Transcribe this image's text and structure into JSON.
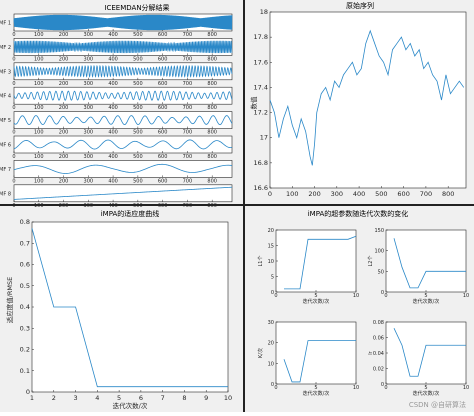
{
  "colors": {
    "line": "#2a88c8",
    "axis": "#262626",
    "background": "#f0f0f0",
    "plot_bg": "#ffffff",
    "divider": "#222222"
  },
  "watermark": "CSDN @自研算法",
  "chart_data": [
    {
      "id": "iceemdan",
      "type": "line",
      "title": "ICEEMDAN分解结果",
      "xlim": [
        0,
        880
      ],
      "xticks": [
        0,
        100,
        200,
        300,
        400,
        500,
        600,
        700,
        800
      ],
      "series": [
        {
          "name": "IMF 1",
          "amplitude": 1.0,
          "period": 3
        },
        {
          "name": "IMF 2",
          "amplitude": 0.8,
          "period": 6
        },
        {
          "name": "IMF 3",
          "amplitude": 0.7,
          "period": 12
        },
        {
          "name": "IMF 4",
          "amplitude": 0.6,
          "period": 25
        },
        {
          "name": "IMF 5",
          "amplitude": 0.6,
          "period": 55
        },
        {
          "name": "IMF 6",
          "amplitude": 0.6,
          "period": 110
        },
        {
          "name": "IMF 7",
          "amplitude": 0.6,
          "period": 260
        },
        {
          "name": "IMF 8",
          "amplitude": 0.6,
          "period": 1400
        }
      ]
    },
    {
      "id": "original",
      "type": "line",
      "title": "原始序列",
      "ylabel": "数值",
      "xlim": [
        0,
        880
      ],
      "ylim": [
        16.6,
        18.0
      ],
      "xticks": [
        0,
        100,
        200,
        300,
        400,
        500,
        600,
        700,
        800
      ],
      "yticks": [
        16.6,
        16.8,
        17.0,
        17.2,
        17.4,
        17.6,
        17.8,
        18.0
      ],
      "x": [
        0,
        20,
        40,
        60,
        80,
        100,
        120,
        140,
        160,
        180,
        190,
        200,
        210,
        230,
        250,
        270,
        290,
        310,
        330,
        350,
        370,
        390,
        410,
        430,
        450,
        470,
        490,
        510,
        530,
        550,
        570,
        590,
        610,
        630,
        650,
        670,
        690,
        710,
        730,
        750,
        770,
        790,
        810,
        830,
        850,
        870
      ],
      "y": [
        17.3,
        17.2,
        17.0,
        17.15,
        17.25,
        17.1,
        17.0,
        17.15,
        17.05,
        16.85,
        16.78,
        16.95,
        17.2,
        17.35,
        17.4,
        17.3,
        17.45,
        17.4,
        17.5,
        17.55,
        17.6,
        17.5,
        17.55,
        17.75,
        17.85,
        17.75,
        17.65,
        17.6,
        17.5,
        17.7,
        17.75,
        17.8,
        17.7,
        17.75,
        17.65,
        17.7,
        17.55,
        17.6,
        17.5,
        17.45,
        17.3,
        17.5,
        17.35,
        17.4,
        17.45,
        17.4
      ]
    },
    {
      "id": "fitness",
      "type": "line",
      "title": "iMPA的适应度曲线",
      "xlabel": "迭代次数/次",
      "ylabel": "适应度值/RMSE",
      "xlim": [
        1,
        10
      ],
      "ylim": [
        0,
        0.8
      ],
      "xticks": [
        1,
        2,
        3,
        4,
        5,
        6,
        7,
        8,
        9,
        10
      ],
      "yticks": [
        0,
        0.1,
        0.2,
        0.3,
        0.4,
        0.5,
        0.6,
        0.7,
        0.8
      ],
      "x": [
        1,
        2,
        3,
        4,
        5,
        6,
        7,
        8,
        9,
        10
      ],
      "y": [
        0.77,
        0.4,
        0.4,
        0.025,
        0.025,
        0.025,
        0.025,
        0.025,
        0.025,
        0.025
      ]
    },
    {
      "id": "params",
      "type": "line",
      "title": "iMPA的超参数随迭代次数的变化",
      "subplots": [
        {
          "ylabel": "L1个",
          "xlabel": "迭代次数/次",
          "xlim": [
            0,
            10
          ],
          "ylim": [
            0,
            20
          ],
          "yticks": [
            0,
            5,
            10,
            15,
            20
          ],
          "xticks": [
            0,
            5,
            10
          ],
          "x": [
            1,
            2,
            3,
            4,
            5,
            6,
            7,
            8,
            9,
            10
          ],
          "y": [
            1,
            1,
            1,
            17,
            17,
            17,
            17,
            17,
            17,
            18
          ]
        },
        {
          "ylabel": "L2个",
          "xlabel": "迭代次数/次",
          "xlim": [
            0,
            10
          ],
          "ylim": [
            0,
            150
          ],
          "yticks": [
            0,
            50,
            100,
            150
          ],
          "xticks": [
            0,
            5,
            10
          ],
          "x": [
            1,
            2,
            3,
            4,
            5,
            6,
            7,
            8,
            9,
            10
          ],
          "y": [
            130,
            60,
            10,
            10,
            50,
            50,
            50,
            50,
            50,
            50
          ]
        },
        {
          "ylabel": "K/次",
          "xlabel": "迭代次数/次",
          "xlim": [
            0,
            10
          ],
          "ylim": [
            0,
            30
          ],
          "yticks": [
            0,
            10,
            20,
            30
          ],
          "xticks": [
            0,
            5,
            10
          ],
          "x": [
            1,
            2,
            3,
            4,
            5,
            6,
            7,
            8,
            9,
            10
          ],
          "y": [
            12,
            1,
            1,
            21,
            21,
            21,
            21,
            21,
            21,
            21
          ]
        },
        {
          "ylabel": "lr",
          "xlabel": "迭代次数/次",
          "xlim": [
            0,
            10
          ],
          "ylim": [
            0,
            0.08
          ],
          "yticks": [
            0,
            0.02,
            0.04,
            0.06,
            0.08
          ],
          "xticks": [
            0,
            5,
            10
          ],
          "x": [
            1,
            2,
            3,
            4,
            5,
            6,
            7,
            8,
            9,
            10
          ],
          "y": [
            0.072,
            0.05,
            0.01,
            0.01,
            0.05,
            0.05,
            0.05,
            0.05,
            0.05,
            0.05
          ]
        }
      ]
    }
  ]
}
